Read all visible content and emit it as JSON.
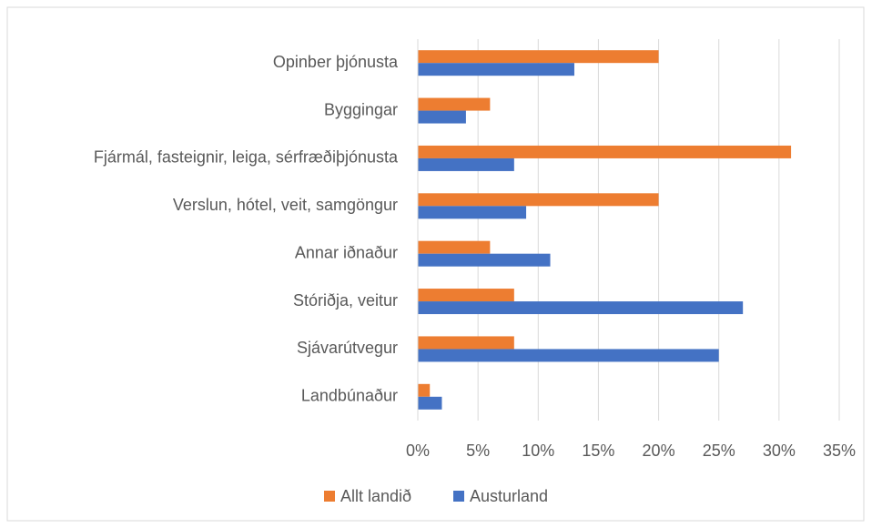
{
  "chart_data": {
    "type": "bar",
    "orientation": "horizontal",
    "categories": [
      "Opinber þjónusta",
      "Byggingar",
      "Fjármál, fasteignir, leiga, sérfræðiþjónusta",
      "Verslun, hótel, veit, samgöngur",
      "Annar iðnaður",
      "Stóriðja, veitur",
      "Sjávarútvegur",
      "Landbúnaður"
    ],
    "series": [
      {
        "name": "Allt landið",
        "color": "#ed7d31",
        "values": [
          20,
          6,
          31,
          20,
          6,
          8,
          8,
          1
        ]
      },
      {
        "name": "Austurland",
        "color": "#4472c4",
        "values": [
          13,
          4,
          8,
          9,
          11,
          27,
          25,
          2
        ]
      }
    ],
    "xlim": [
      0,
      35
    ],
    "xticks": [
      {
        "value": 0,
        "label": "0%"
      },
      {
        "value": 5,
        "label": "5%"
      },
      {
        "value": 10,
        "label": "10%"
      },
      {
        "value": 15,
        "label": "15%"
      },
      {
        "value": 20,
        "label": "20%"
      },
      {
        "value": 25,
        "label": "25%"
      },
      {
        "value": 30,
        "label": "30%"
      },
      {
        "value": 35,
        "label": "35%"
      }
    ],
    "grid": true,
    "legend": "bottom"
  }
}
